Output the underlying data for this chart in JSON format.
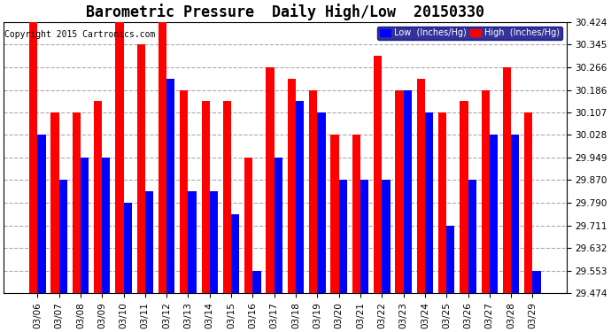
{
  "title": "Barometric Pressure  Daily High/Low  20150330",
  "copyright": "Copyright 2015 Cartronics.com",
  "legend_low": "Low  (Inches/Hg)",
  "legend_high": "High  (Inches/Hg)",
  "dates": [
    "03/06",
    "03/07",
    "03/08",
    "03/09",
    "03/10",
    "03/11",
    "03/12",
    "03/13",
    "03/14",
    "03/15",
    "03/16",
    "03/17",
    "03/18",
    "03/19",
    "03/20",
    "03/21",
    "03/22",
    "03/23",
    "03/24",
    "03/25",
    "03/26",
    "03/27",
    "03/28",
    "03/29"
  ],
  "high": [
    30.424,
    30.107,
    30.107,
    30.146,
    30.503,
    30.345,
    30.424,
    30.186,
    30.146,
    30.146,
    29.949,
    30.266,
    30.225,
    30.186,
    30.028,
    30.028,
    30.306,
    30.186,
    30.225,
    30.107,
    30.146,
    30.186,
    30.266,
    30.107
  ],
  "low": [
    30.028,
    29.87,
    29.949,
    29.949,
    29.79,
    29.83,
    30.225,
    29.83,
    29.83,
    29.751,
    29.553,
    29.949,
    30.146,
    30.107,
    29.87,
    29.87,
    29.87,
    30.186,
    30.107,
    29.711,
    29.87,
    30.028,
    30.028,
    29.553
  ],
  "ylim_min": 29.474,
  "ylim_max": 30.424,
  "yticks": [
    29.474,
    29.553,
    29.632,
    29.711,
    29.79,
    29.87,
    29.949,
    30.028,
    30.107,
    30.186,
    30.266,
    30.345,
    30.424
  ],
  "bar_width": 0.38,
  "bg_color": "#ffffff",
  "high_color": "#ff0000",
  "low_color": "#0000ff",
  "grid_color": "#aaaaaa",
  "figure_bg": "#ffffff",
  "title_fontsize": 12,
  "tick_fontsize": 7.5,
  "copyright_fontsize": 7
}
